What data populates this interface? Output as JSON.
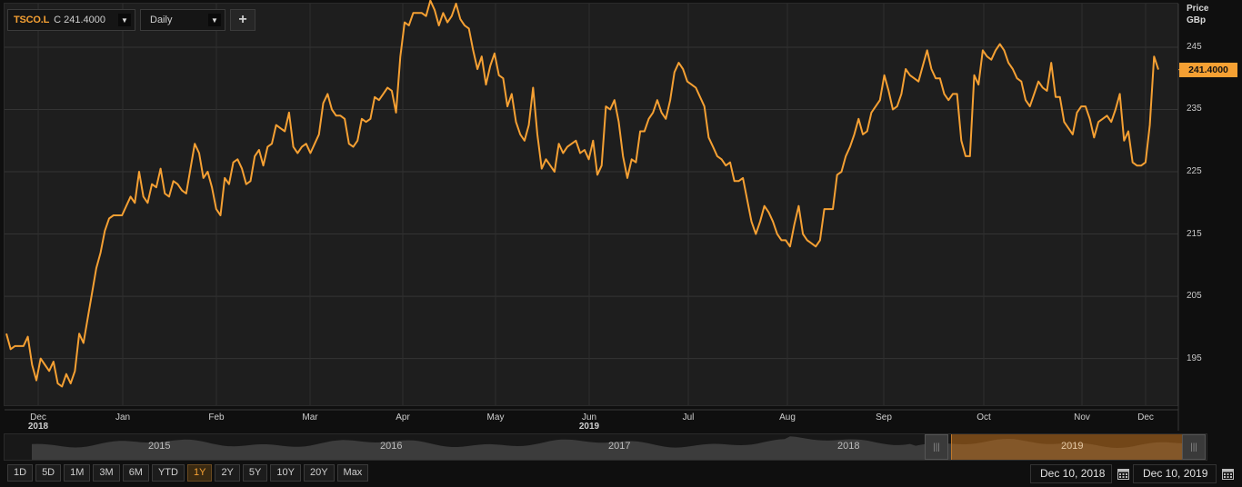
{
  "toolbar": {
    "symbol": "TSCO.L",
    "close_prefix": "C",
    "close_value": "241.4000",
    "interval": "Daily",
    "add_label": "+",
    "dropdown_icon": "triangle-down-icon"
  },
  "axis": {
    "price_title": "Price",
    "currency": "GBp",
    "current_price": "241.4000",
    "accent_color": "#f5a033"
  },
  "navigator": {
    "years": [
      "2015",
      "2016",
      "2017",
      "2018",
      "2019"
    ]
  },
  "range_buttons": [
    "1D",
    "5D",
    "1M",
    "3M",
    "6M",
    "YTD",
    "1Y",
    "2Y",
    "5Y",
    "10Y",
    "20Y",
    "Max"
  ],
  "active_range": "1Y",
  "dates": {
    "start": "Dec 10, 2018",
    "end": "Dec 10, 2019"
  },
  "chart_data": {
    "type": "line",
    "series_color": "#f5a033",
    "x_tick_labels": [
      "Dec",
      "Jan",
      "Feb",
      "Mar",
      "Apr",
      "May",
      "Jun",
      "Jul",
      "Aug",
      "Sep",
      "Oct",
      "Nov",
      "Dec"
    ],
    "x_year_labels": [
      {
        "month": "Dec",
        "year": "2018"
      },
      {
        "month": "Jun",
        "year": "2019"
      }
    ],
    "y_ticks": [
      195,
      205,
      215,
      225,
      235,
      245
    ],
    "ylim": [
      187.5,
      252
    ],
    "grid": true,
    "ylabel": "Price GBp",
    "series": [
      {
        "values": [
          199,
          196.5,
          197,
          197,
          197,
          198.5,
          194,
          191.5,
          195,
          194,
          193,
          194.5,
          191,
          190.5,
          192.5,
          191,
          193,
          199,
          197.5,
          201.5,
          205.5,
          209.5,
          212,
          215.5,
          217.5,
          218,
          218,
          218,
          219.5,
          221,
          220,
          225,
          221,
          220,
          223,
          222.5,
          225.5,
          221.5,
          221,
          223.5,
          223,
          222,
          221.5,
          225.5,
          229.5,
          228,
          224,
          225,
          222.5,
          219,
          218,
          224,
          223,
          226.5,
          227,
          225.5,
          223,
          223.5,
          227.5,
          228.5,
          226,
          229,
          229.5,
          232.5,
          232,
          231.5,
          234.5,
          229,
          228,
          229,
          229.5,
          228,
          229.5,
          231,
          236,
          237.5,
          235,
          234,
          234,
          233.5,
          229.5,
          229,
          230,
          233.5,
          233,
          233.5,
          237,
          236.5,
          237.5,
          238.5,
          238,
          234.5,
          243.5,
          249,
          248.5,
          250.5,
          250.5,
          250.5,
          250,
          252.5,
          251,
          248.5,
          250.5,
          249,
          250,
          252,
          249.5,
          248.5,
          248,
          244.5,
          241.5,
          243.5,
          239,
          242,
          244,
          240.5,
          240,
          235.5,
          237.5,
          233,
          231,
          230,
          232.5,
          238.5,
          231,
          225.5,
          227,
          226,
          225,
          229.5,
          228,
          229,
          229.5,
          230,
          228,
          228.5,
          227,
          230,
          224.5,
          226,
          235.5,
          235,
          236.5,
          233,
          227.5,
          224,
          227,
          226.5,
          231.5,
          231.5,
          233.5,
          234.5,
          236.5,
          234.5,
          233.5,
          236.5,
          241,
          242.5,
          241.5,
          239.5,
          239,
          238.5,
          237,
          235.5,
          230.5,
          229,
          227.5,
          227,
          226,
          226.5,
          223.5,
          223.5,
          224,
          220.5,
          217,
          215,
          217,
          219.5,
          218.5,
          217,
          215,
          214,
          214,
          213,
          216.5,
          219.5,
          215,
          214,
          213.5,
          213,
          214,
          219,
          219,
          219,
          224.5,
          225,
          227.5,
          229,
          231,
          233.5,
          231,
          231.5,
          234.5,
          235.5,
          236.5,
          240.5,
          238,
          235,
          235.5,
          237.5,
          241.5,
          240.5,
          240,
          239.5,
          242,
          244.5,
          241.5,
          240,
          240,
          237.5,
          236.5,
          237.5,
          237.5,
          230,
          227.5,
          227.5,
          240.5,
          239,
          244.5,
          243.5,
          243,
          244.5,
          245.5,
          244.5,
          242.5,
          241.5,
          240,
          239.5,
          236.5,
          235.5,
          237.5,
          239.5,
          238.5,
          238,
          242.5,
          237,
          237,
          233,
          232,
          231,
          234.5,
          235.5,
          235.5,
          233.5,
          230.5,
          233,
          233.5,
          234,
          233,
          235,
          237.5,
          230,
          231.5,
          226.5,
          226,
          226,
          226.5,
          232.5,
          243.5,
          241.4
        ]
      }
    ]
  }
}
